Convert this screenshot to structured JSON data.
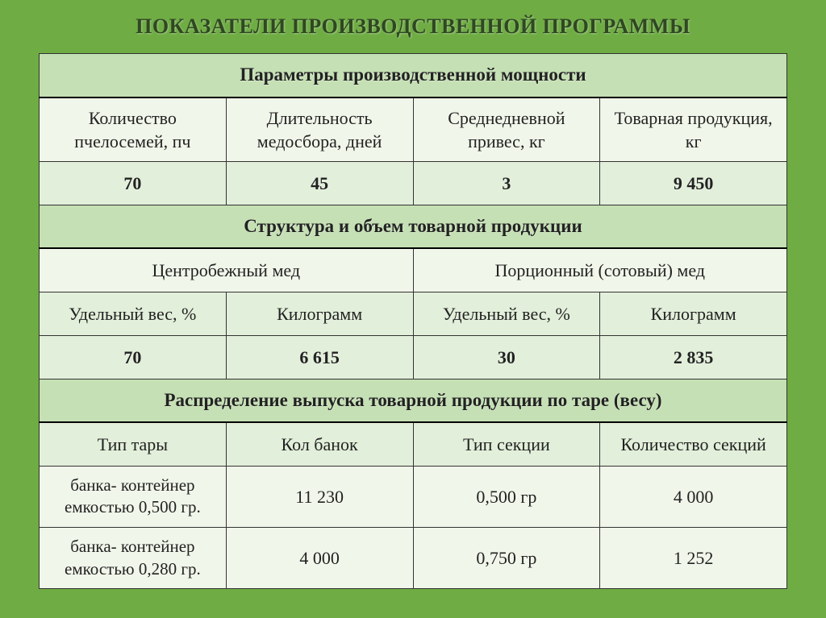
{
  "title": "ПОКАЗАТЕЛИ ПРОИЗВОДСТВЕННОЙ ПРОГРАММЫ",
  "colors": {
    "slide_bg": "#6fac44",
    "section_head_bg": "#c5e0b4",
    "data_bg": "#e2efda",
    "plain_bg": "#f1f6ea",
    "border": "#333333",
    "title_color": "#2f4722"
  },
  "fontsizes": {
    "title": 26,
    "section": 23,
    "cell": 22
  },
  "section1": {
    "header": "Параметры производственной мощности",
    "cols": [
      "Количество пчелосемей, пч",
      "Длительность медосбора, дней",
      "Среднедневной привес, кг",
      "Товарная продукция, кг"
    ],
    "values": [
      "70",
      "45",
      "3",
      "9 450"
    ]
  },
  "section2": {
    "header": "Структура и объем товарной продукции",
    "groups": [
      "Центробежный мед",
      "Порционный (сотовый) мед"
    ],
    "subcols": [
      "Удельный вес, %",
      "Килограмм",
      "Удельный вес, %",
      "Килограмм"
    ],
    "values": [
      "70",
      "6 615",
      "30",
      "2 835"
    ]
  },
  "section3": {
    "header": "Распределение выпуска товарной продукции по таре (весу)",
    "cols": [
      "Тип тары",
      "Кол банок",
      "Тип секции",
      "Количество секций"
    ],
    "rows": [
      [
        "банка- контейнер емкостью 0,500 гр.",
        "11 230",
        "0,500 гр",
        "4 000"
      ],
      [
        "банка- контейнер емкостью 0,280 гр.",
        "4 000",
        "0,750 гр",
        "1 252"
      ]
    ]
  }
}
